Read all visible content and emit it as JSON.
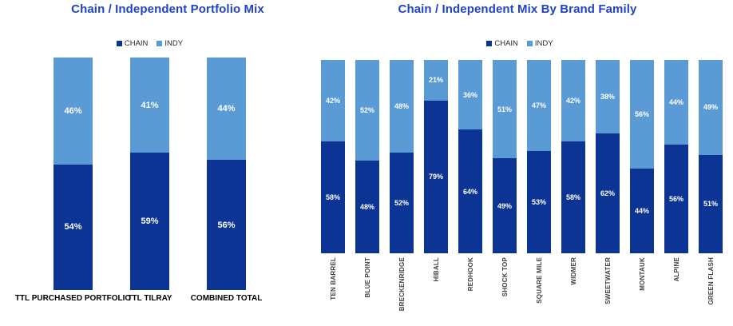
{
  "page": {
    "background": "#FFFFFF"
  },
  "colors": {
    "chain": "#0B3494",
    "indy": "#5B9BD5",
    "title_blue": "#2043C9",
    "category_label_left": "#000000",
    "category_label_right": "#404040",
    "value_label": "#FFFFFF",
    "legend_text": "#262626"
  },
  "chart_data": [
    {
      "type": "bar",
      "stacked": true,
      "orientation": "vertical",
      "title": "Chain / Independent Portfolio Mix",
      "legend_position": "top",
      "grid": false,
      "axes_visible": false,
      "ylim": [
        0,
        100
      ],
      "value_label_format": "percent",
      "categories": [
        "TTL PURCHASED PORTFOLIO",
        "TTL TILRAY",
        "COMBINED TOTAL"
      ],
      "series": [
        {
          "name": "CHAIN",
          "color": "#0B3494",
          "values": [
            54,
            59,
            56
          ]
        },
        {
          "name": "INDY",
          "color": "#5B9BD5",
          "values": [
            46,
            41,
            44
          ]
        }
      ]
    },
    {
      "type": "bar",
      "stacked": true,
      "orientation": "vertical",
      "title": "Chain / Independent Mix By Brand Family",
      "legend_position": "top",
      "grid": false,
      "axes_visible": false,
      "ylim": [
        0,
        100
      ],
      "value_label_format": "percent",
      "categories": [
        "TEN BARREL",
        "BLUE POINT",
        "BRECKENRIDGE",
        "HIBALL",
        "REDHOOK",
        "SHOCK TOP",
        "SQUARE MILE",
        "WIDMER",
        "SWEETWATER",
        "MONTAUK",
        "ALPINE",
        "GREEN FLASH"
      ],
      "series": [
        {
          "name": "CHAIN",
          "color": "#0B3494",
          "values": [
            58,
            48,
            52,
            79,
            64,
            49,
            53,
            58,
            62,
            44,
            56,
            51
          ]
        },
        {
          "name": "INDY",
          "color": "#5B9BD5",
          "values": [
            42,
            52,
            48,
            21,
            36,
            51,
            47,
            42,
            38,
            56,
            44,
            49
          ]
        }
      ]
    }
  ]
}
